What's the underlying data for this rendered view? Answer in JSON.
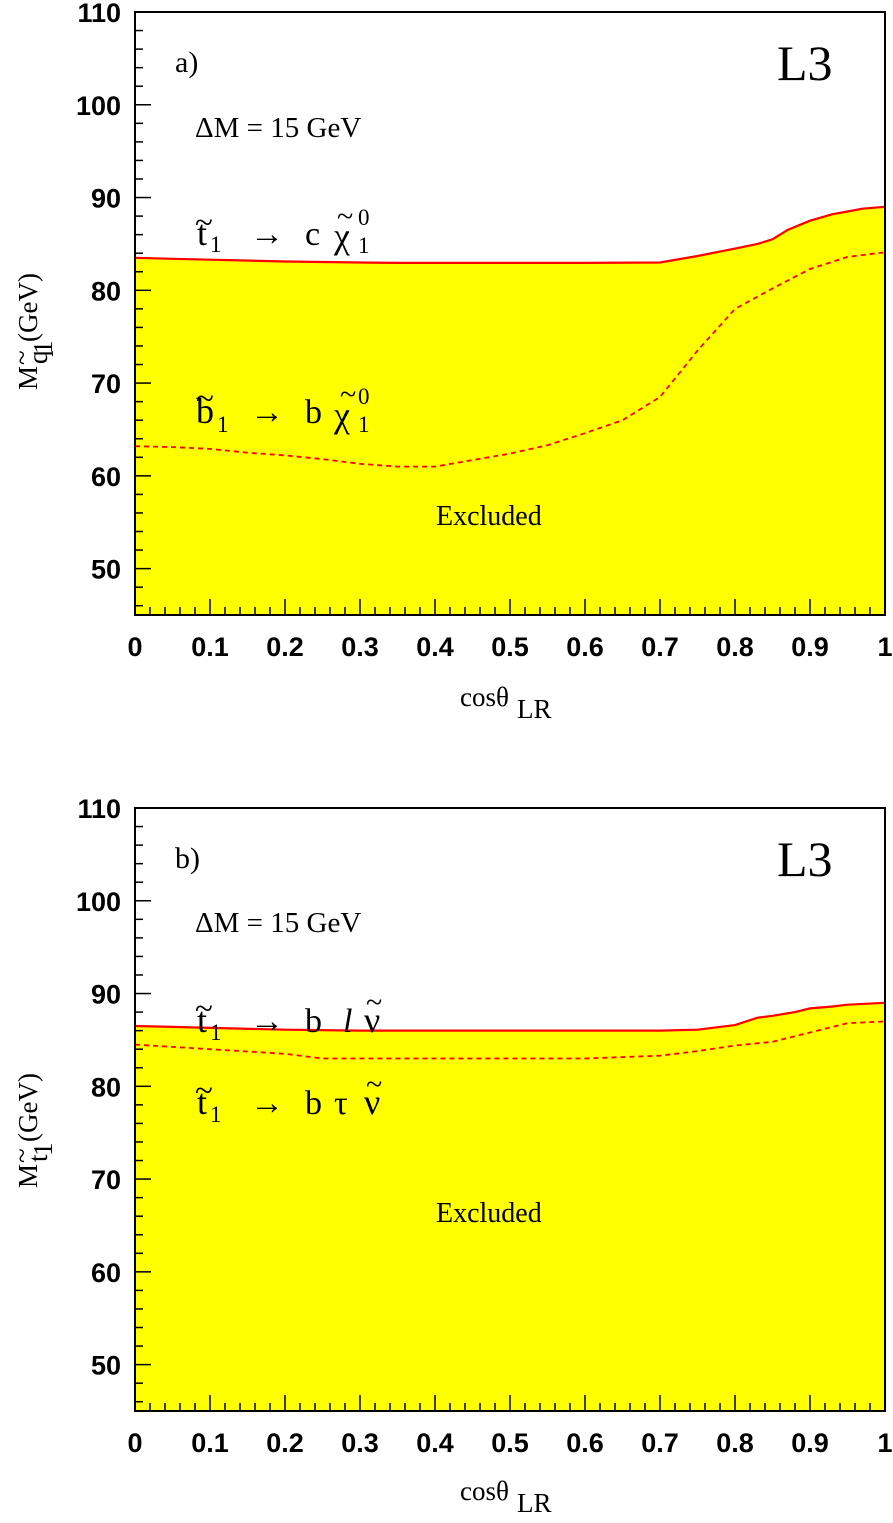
{
  "chart_data": [
    {
      "type": "area",
      "panel_label": "a)",
      "experiment": "L3",
      "condition": "ΔM = 15 GeV",
      "xlabel": {
        "main": "cosθ",
        "sub": "LR"
      },
      "ylabel": {
        "main": "M",
        "sub": "q",
        "subsub": "1",
        "unit": "(GeV)"
      },
      "xlim": [
        0,
        1
      ],
      "ylim": [
        45,
        110
      ],
      "x_ticks": [
        "0",
        "0.1",
        "0.2",
        "0.3",
        "0.4",
        "0.5",
        "0.6",
        "0.7",
        "0.8",
        "0.9",
        "1"
      ],
      "y_ticks": [
        "50",
        "60",
        "70",
        "80",
        "90",
        "100",
        "110"
      ],
      "fill_label": "Excluded",
      "fill_color": "#ffff00",
      "line_color": "#ff0000",
      "series": [
        {
          "name": "t̃1 → c χ̃01",
          "style": "solid",
          "label": {
            "particle": "t",
            "sub": "1",
            "arrow": "→",
            "product": "c",
            "lsp": "χ",
            "lsp_sub": "1",
            "lsp_sup": "0"
          },
          "x": [
            0,
            0.05,
            0.1,
            0.2,
            0.3,
            0.35,
            0.4,
            0.5,
            0.6,
            0.7,
            0.75,
            0.8,
            0.83,
            0.85,
            0.87,
            0.9,
            0.93,
            0.95,
            0.97,
            1.0
          ],
          "y": [
            83.5,
            83.4,
            83.3,
            83.1,
            83.0,
            82.95,
            82.95,
            82.95,
            82.95,
            83.0,
            83.7,
            84.5,
            85.0,
            85.5,
            86.5,
            87.5,
            88.2,
            88.5,
            88.8,
            89.0
          ]
        },
        {
          "name": "b̃1 → b χ̃01",
          "style": "dashed",
          "label": {
            "particle": "b",
            "sub": "1",
            "arrow": "→",
            "product": "b",
            "lsp": "χ",
            "lsp_sub": "1",
            "lsp_sup": "0"
          },
          "x": [
            0,
            0.05,
            0.1,
            0.15,
            0.2,
            0.25,
            0.3,
            0.35,
            0.4,
            0.45,
            0.5,
            0.55,
            0.6,
            0.65,
            0.7,
            0.75,
            0.8,
            0.85,
            0.9,
            0.95,
            1.0
          ],
          "y": [
            63.2,
            63.1,
            62.9,
            62.5,
            62.2,
            61.8,
            61.3,
            61.0,
            61.0,
            61.7,
            62.4,
            63.3,
            64.6,
            66.0,
            68.5,
            73.5,
            78.0,
            80.2,
            82.3,
            83.6,
            84.1
          ]
        }
      ]
    },
    {
      "type": "area",
      "panel_label": "b)",
      "experiment": "L3",
      "condition": "ΔM = 15 GeV",
      "xlabel": {
        "main": "cosθ",
        "sub": "LR"
      },
      "ylabel": {
        "main": "M",
        "sub": "t",
        "subsub": "1",
        "unit": "(GeV)"
      },
      "xlim": [
        0,
        1
      ],
      "ylim": [
        45,
        110
      ],
      "x_ticks": [
        "0",
        "0.1",
        "0.2",
        "0.3",
        "0.4",
        "0.5",
        "0.6",
        "0.7",
        "0.8",
        "0.9",
        "1"
      ],
      "y_ticks": [
        "50",
        "60",
        "70",
        "80",
        "90",
        "100",
        "110"
      ],
      "fill_label": "Excluded",
      "fill_color": "#ffff00",
      "line_color": "#ff0000",
      "series": [
        {
          "name": "t̃1 → b l ν̃",
          "style": "solid",
          "label": {
            "particle": "t",
            "sub": "1",
            "arrow": "→",
            "product": "b",
            "lepton": "l",
            "sneutrino": "ν"
          },
          "x": [
            0,
            0.05,
            0.1,
            0.2,
            0.3,
            0.4,
            0.5,
            0.6,
            0.7,
            0.75,
            0.8,
            0.83,
            0.85,
            0.88,
            0.9,
            0.93,
            0.95,
            1.0
          ],
          "y": [
            86.5,
            86.4,
            86.3,
            86.1,
            86.0,
            86.0,
            86.0,
            86.0,
            86.0,
            86.1,
            86.6,
            87.4,
            87.6,
            88.0,
            88.4,
            88.6,
            88.8,
            89.0
          ]
        },
        {
          "name": "t̃1 → b τ ν̃",
          "style": "dashed",
          "label": {
            "particle": "t",
            "sub": "1",
            "arrow": "→",
            "product": "b",
            "lepton": "τ",
            "sneutrino": "ν"
          },
          "x": [
            0,
            0.1,
            0.2,
            0.25,
            0.3,
            0.4,
            0.5,
            0.6,
            0.7,
            0.75,
            0.8,
            0.85,
            0.9,
            0.95,
            1.0
          ],
          "y": [
            84.5,
            84.0,
            83.5,
            83.0,
            83.0,
            83.0,
            83.0,
            83.0,
            83.3,
            83.8,
            84.4,
            84.8,
            85.8,
            86.8,
            87.0
          ]
        }
      ]
    }
  ]
}
